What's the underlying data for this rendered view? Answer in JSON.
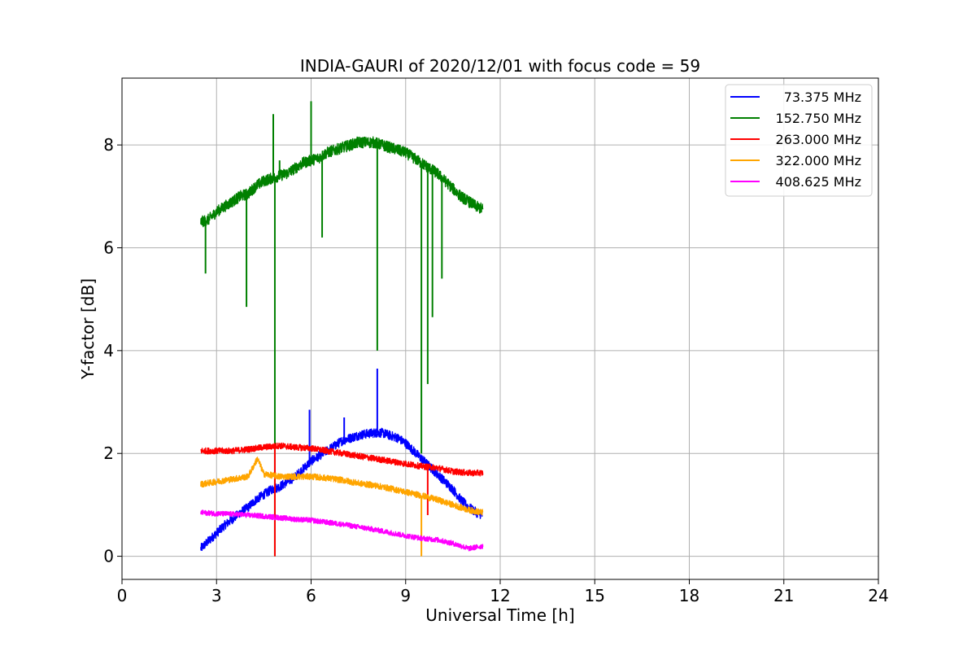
{
  "chart_data": {
    "type": "line",
    "title": "INDIA-GAURI of 2020/12/01 with focus code = 59",
    "xlabel": "Universal Time [h]",
    "ylabel": "Y-factor [dB]",
    "xlim": [
      0,
      24
    ],
    "ylim": [
      -0.45,
      9.3
    ],
    "xticks": [
      0,
      3,
      6,
      9,
      12,
      15,
      18,
      21,
      24
    ],
    "yticks": [
      0,
      2,
      4,
      6,
      8
    ],
    "grid": true,
    "legend_position": "top-right",
    "series": [
      {
        "name": "73.375 MHz",
        "color": "#0000ff",
        "x": [
          2.5,
          2.75,
          3.0,
          3.25,
          3.5,
          3.75,
          4.0,
          4.25,
          4.5,
          4.75,
          5.0,
          5.25,
          5.5,
          5.75,
          6.0,
          6.25,
          6.5,
          6.75,
          7.0,
          7.25,
          7.5,
          7.75,
          8.0,
          8.25,
          8.5,
          8.75,
          9.0,
          9.25,
          9.5,
          9.75,
          10.0,
          10.25,
          10.5,
          10.75,
          11.0,
          11.25,
          11.45
        ],
        "y": [
          0.15,
          0.3,
          0.45,
          0.6,
          0.72,
          0.85,
          0.95,
          1.1,
          1.2,
          1.3,
          1.35,
          1.45,
          1.55,
          1.7,
          1.85,
          1.95,
          2.05,
          2.15,
          2.25,
          2.3,
          2.35,
          2.38,
          2.4,
          2.4,
          2.35,
          2.3,
          2.2,
          2.05,
          1.9,
          1.75,
          1.6,
          1.45,
          1.3,
          1.1,
          0.95,
          0.85,
          0.8
        ],
        "spikes": [
          [
            5.95,
            2.85
          ],
          [
            7.05,
            2.7
          ],
          [
            8.1,
            3.65
          ]
        ]
      },
      {
        "name": "152.750 MHz",
        "color": "#008000",
        "x": [
          2.5,
          2.75,
          3.0,
          3.25,
          3.5,
          3.75,
          4.0,
          4.25,
          4.5,
          4.75,
          5.0,
          5.25,
          5.5,
          5.75,
          6.0,
          6.25,
          6.5,
          6.75,
          7.0,
          7.25,
          7.5,
          7.75,
          8.0,
          8.25,
          8.5,
          8.75,
          9.0,
          9.25,
          9.5,
          9.75,
          10.0,
          10.25,
          10.5,
          10.75,
          11.0,
          11.25,
          11.45
        ],
        "y": [
          6.5,
          6.55,
          6.7,
          6.8,
          6.9,
          7.0,
          7.05,
          7.2,
          7.3,
          7.35,
          7.4,
          7.45,
          7.55,
          7.65,
          7.7,
          7.75,
          7.85,
          7.9,
          7.95,
          8.0,
          8.05,
          8.05,
          8.05,
          8.0,
          7.95,
          7.9,
          7.85,
          7.75,
          7.65,
          7.55,
          7.45,
          7.3,
          7.15,
          7.0,
          6.9,
          6.8,
          6.75
        ],
        "spikes": [
          [
            2.65,
            5.5
          ],
          [
            3.95,
            4.85
          ],
          [
            4.8,
            8.6
          ],
          [
            4.85,
            0.0
          ],
          [
            5.0,
            7.7
          ],
          [
            6.0,
            8.85
          ],
          [
            6.35,
            6.2
          ],
          [
            8.1,
            4.0
          ],
          [
            9.5,
            2.0
          ],
          [
            9.7,
            3.35
          ],
          [
            9.85,
            4.65
          ],
          [
            10.15,
            5.4
          ]
        ]
      },
      {
        "name": "263.000 MHz",
        "color": "#ff0000",
        "x": [
          2.5,
          3.0,
          3.5,
          4.0,
          4.5,
          5.0,
          5.5,
          6.0,
          6.5,
          7.0,
          7.5,
          8.0,
          8.5,
          9.0,
          9.5,
          10.0,
          10.5,
          11.0,
          11.45
        ],
        "y": [
          2.05,
          2.05,
          2.05,
          2.08,
          2.12,
          2.15,
          2.12,
          2.1,
          2.05,
          2.0,
          1.95,
          1.9,
          1.85,
          1.8,
          1.75,
          1.72,
          1.65,
          1.62,
          1.62
        ],
        "spikes": [
          [
            4.85,
            0.0
          ],
          [
            9.7,
            0.8
          ]
        ]
      },
      {
        "name": "322.000 MHz",
        "color": "#ffa500",
        "x": [
          2.5,
          3.0,
          3.5,
          4.0,
          4.3,
          4.5,
          5.0,
          5.5,
          6.0,
          6.5,
          7.0,
          7.5,
          8.0,
          8.5,
          9.0,
          9.5,
          10.0,
          10.5,
          11.0,
          11.45
        ],
        "y": [
          1.4,
          1.45,
          1.5,
          1.55,
          1.9,
          1.6,
          1.55,
          1.55,
          1.55,
          1.52,
          1.48,
          1.42,
          1.38,
          1.32,
          1.25,
          1.18,
          1.1,
          1.0,
          0.9,
          0.85
        ],
        "spikes": [
          [
            9.5,
            0.0
          ]
        ]
      },
      {
        "name": "408.625 MHz",
        "color": "#ff00ff",
        "x": [
          2.5,
          3.0,
          3.5,
          4.0,
          4.5,
          5.0,
          5.5,
          6.0,
          6.5,
          7.0,
          7.5,
          8.0,
          8.5,
          9.0,
          9.5,
          10.0,
          10.5,
          11.0,
          11.45
        ],
        "y": [
          0.85,
          0.83,
          0.82,
          0.8,
          0.78,
          0.75,
          0.72,
          0.7,
          0.66,
          0.62,
          0.57,
          0.52,
          0.46,
          0.4,
          0.35,
          0.32,
          0.25,
          0.15,
          0.2
        ],
        "spikes": []
      }
    ]
  }
}
